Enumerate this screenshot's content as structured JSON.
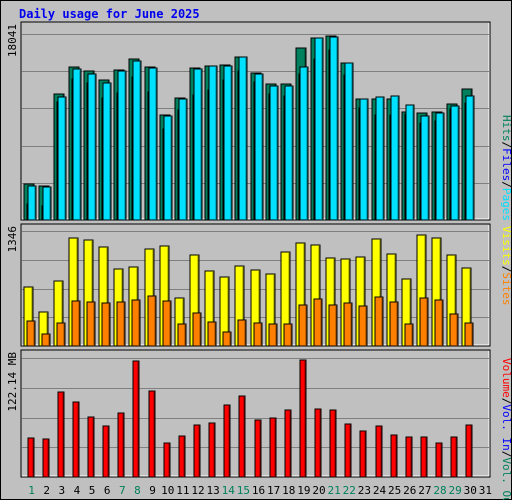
{
  "title": "Daily usage for June 2025",
  "colors": {
    "background": "#c0c0c0",
    "plot_bg": "#c0c0c0",
    "gridline": "#808080",
    "hits": "#00805c",
    "files": "#0000ff",
    "pages": "#00e0ff",
    "visits": "#ffff00",
    "sites": "#ff8000",
    "kbytes": "#ff0000",
    "weekend_label": "#00805c",
    "weekday_label": "#000000",
    "slash": "#000000"
  },
  "chart_data": [
    {
      "type": "bar",
      "panel": "hits-files-pages",
      "axis_max_label": "18041",
      "ylim": [
        0,
        18041
      ],
      "categories": [
        "1",
        "2",
        "3",
        "4",
        "5",
        "6",
        "7",
        "8",
        "9",
        "10",
        "11",
        "12",
        "13",
        "14",
        "15",
        "16",
        "17",
        "18",
        "19",
        "20",
        "21",
        "22",
        "23",
        "24",
        "25",
        "26",
        "27",
        "28",
        "29",
        "30",
        "31"
      ],
      "series": [
        {
          "name": "Hits",
          "values": [
            3470,
            3340,
            12240,
            14880,
            14410,
            13590,
            14590,
            15620,
            14800,
            10180,
            11820,
            14720,
            14970,
            15060,
            15850,
            14280,
            13180,
            13180,
            16710,
            17690,
            17860,
            15220,
            11720,
            11720,
            11720,
            10510,
            10340,
            10510,
            11220,
            12740,
            null
          ]
        },
        {
          "name": "Files",
          "values": [
            1540,
            1330,
            11480,
            13670,
            13260,
            11820,
            12350,
            13890,
            12390,
            8870,
            10640,
            12170,
            12640,
            13620,
            14430,
            13420,
            12180,
            12070,
            14200,
            15640,
            16530,
            14060,
            10840,
            10180,
            10170,
            10260,
            9360,
            9560,
            10720,
            11360,
            null
          ]
        },
        {
          "name": "Pages",
          "values": [
            3300,
            3190,
            11940,
            14690,
            14190,
            13330,
            14410,
            15460,
            14730,
            10100,
            11780,
            14640,
            14890,
            14930,
            15780,
            14200,
            13010,
            13010,
            14870,
            17650,
            17790,
            15180,
            11710,
            11960,
            11980,
            11160,
            10120,
            10370,
            11040,
            12020,
            null
          ]
        }
      ]
    },
    {
      "type": "bar",
      "panel": "visits-sites",
      "axis_max_label": "1346",
      "ylim": [
        0,
        1346
      ],
      "categories": [
        "1",
        "2",
        "3",
        "4",
        "5",
        "6",
        "7",
        "8",
        "9",
        "10",
        "11",
        "12",
        "13",
        "14",
        "15",
        "16",
        "17",
        "18",
        "19",
        "20",
        "21",
        "22",
        "23",
        "24",
        "25",
        "26",
        "27",
        "28",
        "29",
        "30",
        "31"
      ],
      "series": [
        {
          "name": "Visits",
          "values": [
            687,
            402,
            755,
            1267,
            1240,
            1158,
            905,
            927,
            1135,
            1173,
            559,
            1060,
            883,
            805,
            933,
            890,
            845,
            1100,
            1202,
            1185,
            1025,
            1020,
            1045,
            1255,
            1078,
            788,
            1302,
            1267,
            1060,
            918,
            null
          ]
        },
        {
          "name": "Sites",
          "values": [
            290,
            145,
            266,
            532,
            510,
            501,
            520,
            538,
            581,
            521,
            255,
            385,
            283,
            165,
            310,
            268,
            258,
            255,
            479,
            551,
            482,
            502,
            463,
            576,
            520,
            255,
            564,
            537,
            376,
            271,
            null
          ]
        }
      ]
    },
    {
      "type": "bar",
      "panel": "kbytes",
      "axis_max_label": "122.14 MB",
      "ylim": [
        0,
        122.14
      ],
      "categories": [
        "1",
        "2",
        "3",
        "4",
        "5",
        "6",
        "7",
        "8",
        "9",
        "10",
        "11",
        "12",
        "13",
        "14",
        "15",
        "16",
        "17",
        "18",
        "19",
        "20",
        "21",
        "22",
        "23",
        "24",
        "25",
        "26",
        "27",
        "28",
        "29",
        "30",
        "31"
      ],
      "series": [
        {
          "name": "Volume",
          "values": [
            40.2,
            39.3,
            87.5,
            77.4,
            61.7,
            52.7,
            66.0,
            118.6,
            88.6,
            34.8,
            42.4,
            53.1,
            55.4,
            73.6,
            83.5,
            58.8,
            60.1,
            68.7,
            120.6,
            69.6,
            68.7,
            54.2,
            47.2,
            52.4,
            42.7,
            40.6,
            41.5,
            35.2,
            40.6,
            53.6,
            null
          ]
        }
      ]
    }
  ],
  "legend": {
    "top": [
      {
        "label": "Hits",
        "color": "#00805c"
      },
      {
        "label": "/",
        "color": "#000000"
      },
      {
        "label": "Files",
        "color": "#0000ff"
      },
      {
        "label": "/",
        "color": "#000000"
      },
      {
        "label": "Pages",
        "color": "#00e0ff"
      }
    ],
    "middle": [
      {
        "label": "Visits",
        "color": "#ffff00"
      },
      {
        "label": "/",
        "color": "#000000"
      },
      {
        "label": "Sites",
        "color": "#ff8000"
      }
    ],
    "bottom": [
      {
        "label": "Volume",
        "color": "#ff0000"
      },
      {
        "label": "/",
        "color": "#000000"
      },
      {
        "label": "Vol. In",
        "color": "#0000ff"
      },
      {
        "label": "/",
        "color": "#000000"
      },
      {
        "label": "Vol. Out",
        "color": "#00805c"
      }
    ],
    "top2": [
      {
        "label": "/",
        "color": "#000000"
      },
      {
        "label": "Sites",
        "color": "#ff8000"
      },
      {
        "label": "/",
        "color": "#000000"
      },
      {
        "label": "Visits",
        "color": "#ffff00"
      },
      {
        "label": "/",
        "color": "#000000"
      },
      {
        "label": "Pages",
        "color": "#00e0ff"
      },
      {
        "label": "/",
        "color": "#000000"
      },
      {
        "label": "Files",
        "color": "#0000ff"
      },
      {
        "label": "/",
        "color": "#000000"
      },
      {
        "label": "Hits",
        "color": "#00805c"
      }
    ]
  },
  "weekend_days": [
    "1",
    "7",
    "8",
    "14",
    "15",
    "21",
    "22",
    "28",
    "29"
  ]
}
